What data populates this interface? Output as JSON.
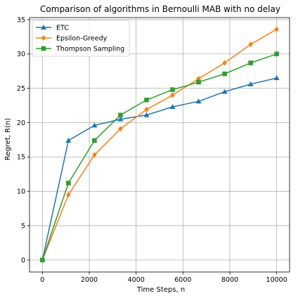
{
  "chart_data": {
    "type": "line",
    "title": "Comparison of algorithms in Bernoulli MAB with no delay",
    "xlabel": "Time Steps, n",
    "ylabel": "Regret, R(n)",
    "xlim": [
      -550,
      10550
    ],
    "ylim": [
      -1.75,
      35.3
    ],
    "xticks": [
      0,
      2000,
      4000,
      6000,
      8000,
      10000
    ],
    "yticks": [
      0,
      5,
      10,
      15,
      20,
      25,
      30,
      35
    ],
    "x": [
      0,
      1111,
      2222,
      3333,
      4444,
      5556,
      6667,
      7778,
      8889,
      10000
    ],
    "grid": true,
    "legend_position": "upper-left",
    "series": [
      {
        "name": "ETC",
        "color": "#1f77b4",
        "marker": "triangle",
        "values": [
          0,
          17.4,
          19.6,
          20.5,
          21.1,
          22.3,
          23.1,
          24.5,
          25.6,
          26.5
        ]
      },
      {
        "name": "Epsilon-Greedy",
        "color": "#ff7f0e",
        "marker": "diamond",
        "values": [
          0,
          9.5,
          15.3,
          19.1,
          21.9,
          24.0,
          26.4,
          28.7,
          31.4,
          33.6
        ]
      },
      {
        "name": "Thompson Sampling",
        "color": "#2ca02c",
        "marker": "square",
        "values": [
          0,
          11.2,
          17.4,
          21.1,
          23.3,
          24.8,
          25.9,
          27.1,
          28.7,
          30.0
        ]
      }
    ]
  }
}
